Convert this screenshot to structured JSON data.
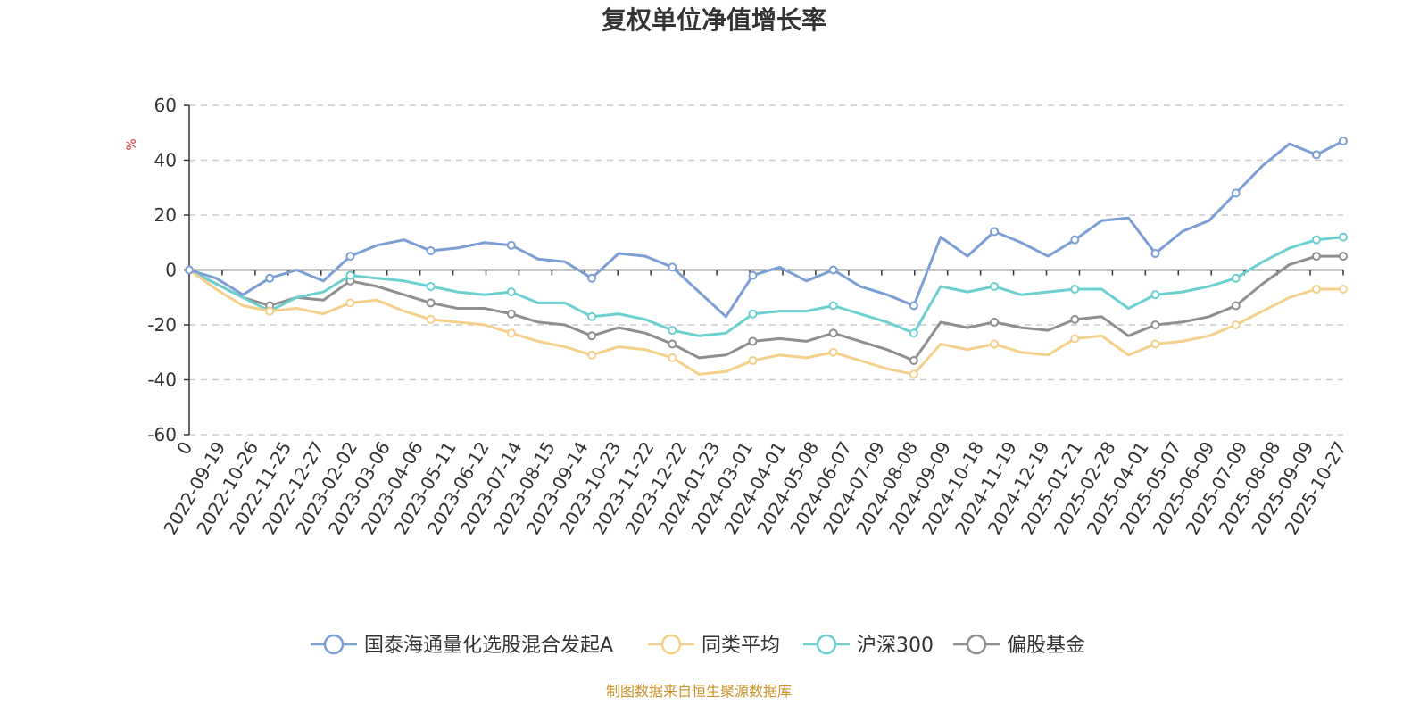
{
  "chart_data": {
    "type": "line",
    "title": "复权单位净值增长率",
    "ylabel": "%",
    "ylim": [
      -60,
      60
    ],
    "yticks": [
      -60,
      -40,
      -20,
      0,
      20,
      40,
      60
    ],
    "grid": true,
    "legend_position": "bottom",
    "source": "制图数据来自恒生聚源数据库",
    "x_tick_labels": [
      "0",
      "2022-09-19",
      "2022-10-26",
      "2022-11-25",
      "2022-12-27",
      "2023-02-02",
      "2023-03-06",
      "2023-04-06",
      "2023-05-11",
      "2023-06-12",
      "2023-07-14",
      "2023-08-15",
      "2023-09-14",
      "2023-10-23",
      "2023-11-22",
      "2023-12-22",
      "2024-01-23",
      "2024-03-01",
      "2024-04-01",
      "2024-05-08",
      "2024-06-07",
      "2024-07-09",
      "2024-08-08",
      "2024-09-09",
      "2024-10-18",
      "2024-11-19",
      "2024-12-19",
      "2025-01-21",
      "2025-02-28",
      "2025-04-01",
      "2025-05-07",
      "2025-06-09",
      "2025-07-09",
      "2025-08-08",
      "2025-09-09",
      "2025-10-27"
    ],
    "series": [
      {
        "name": "国泰海通量化选股混合发起A",
        "color": "#7b9fd4",
        "values": [
          0,
          -3,
          -9,
          -3,
          0,
          -4,
          5,
          9,
          11,
          7,
          8,
          10,
          9,
          4,
          3,
          -3,
          6,
          5,
          1,
          -8,
          -17,
          -2,
          1,
          -4,
          0,
          -6,
          -9,
          -13,
          12,
          5,
          14,
          10,
          5,
          11,
          18,
          19,
          6,
          14,
          18,
          28,
          38,
          46,
          42,
          47
        ]
      },
      {
        "name": "同类平均",
        "color": "#f5d08a",
        "values": [
          0,
          -7,
          -13,
          -15,
          -14,
          -16,
          -12,
          -11,
          -15,
          -18,
          -19,
          -20,
          -23,
          -26,
          -28,
          -31,
          -28,
          -29,
          -32,
          -38,
          -37,
          -33,
          -31,
          -32,
          -30,
          -33,
          -36,
          -38,
          -27,
          -29,
          -27,
          -30,
          -31,
          -25,
          -24,
          -31,
          -27,
          -26,
          -24,
          -20,
          -15,
          -10,
          -7,
          -7
        ]
      },
      {
        "name": "沪深300",
        "color": "#6ccfd0",
        "values": [
          0,
          -5,
          -10,
          -15,
          -10,
          -8,
          -2,
          -3,
          -4,
          -6,
          -8,
          -9,
          -8,
          -12,
          -12,
          -17,
          -16,
          -18,
          -22,
          -24,
          -23,
          -16,
          -15,
          -15,
          -13,
          -16,
          -19,
          -23,
          -6,
          -8,
          -6,
          -9,
          -8,
          -7,
          -7,
          -14,
          -9,
          -8,
          -6,
          -3,
          3,
          8,
          11,
          12
        ]
      },
      {
        "name": "偏股基金",
        "color": "#8f8f8f",
        "values": [
          0,
          -5,
          -10,
          -13,
          -10,
          -11,
          -4,
          -6,
          -9,
          -12,
          -14,
          -14,
          -16,
          -19,
          -20,
          -24,
          -21,
          -23,
          -27,
          -32,
          -31,
          -26,
          -25,
          -26,
          -23,
          -26,
          -29,
          -33,
          -19,
          -21,
          -19,
          -21,
          -22,
          -18,
          -17,
          -24,
          -20,
          -19,
          -17,
          -13,
          -5,
          2,
          5,
          5
        ]
      }
    ]
  }
}
